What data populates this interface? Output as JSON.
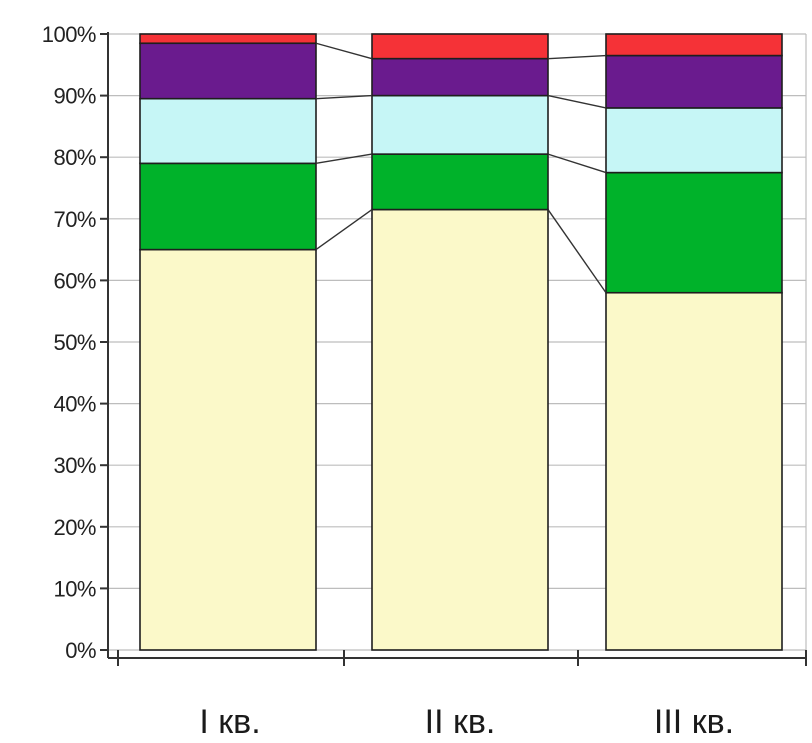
{
  "chart_data": {
    "type": "bar",
    "stacking": "percent",
    "categories": [
      "I кв.",
      "II кв.",
      "III кв."
    ],
    "series": [
      {
        "color": "#FBF9C9",
        "values": [
          65,
          71.5,
          58
        ]
      },
      {
        "color": "#00B22A",
        "values": [
          14,
          9,
          19.5
        ]
      },
      {
        "color": "#C6F6F6",
        "values": [
          10.5,
          9.5,
          10.5
        ]
      },
      {
        "color": "#6A1B8E",
        "values": [
          9,
          6,
          8.5
        ]
      },
      {
        "color": "#F53237",
        "values": [
          1.5,
          4,
          3.5
        ]
      }
    ],
    "y_ticks": [
      "0%",
      "10%",
      "20%",
      "30%",
      "40%",
      "50%",
      "60%",
      "70%",
      "80%",
      "90%",
      "100%"
    ],
    "ylim": [
      0,
      100
    ],
    "grid": true,
    "connector_lines": true,
    "title": "",
    "xlabel": "",
    "ylabel": ""
  }
}
